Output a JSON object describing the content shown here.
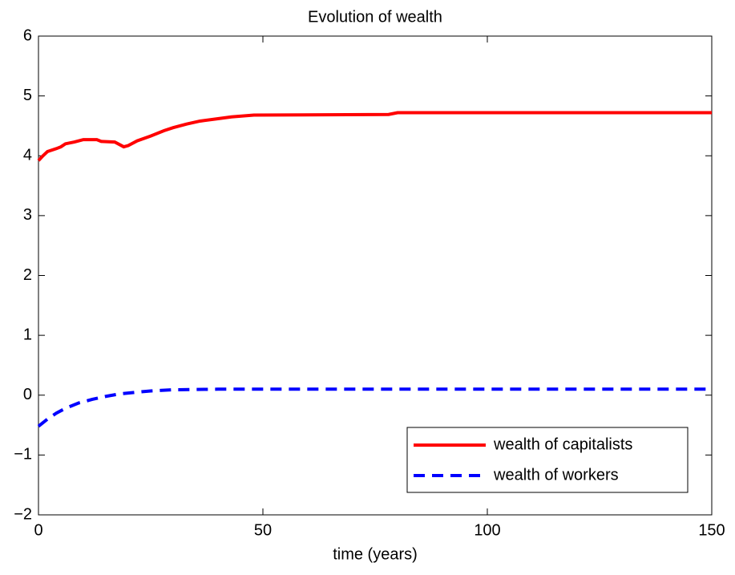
{
  "chart_data": {
    "type": "line",
    "title": "Evolution of wealth",
    "xlabel": "time (years)",
    "xlim": [
      0,
      150
    ],
    "xticks": [
      0,
      50,
      100,
      150
    ],
    "ylim": [
      -2,
      6
    ],
    "yticks": [
      {
        "value": -2,
        "label": "−2"
      },
      {
        "value": -1,
        "label": "−1"
      },
      0,
      1,
      2,
      3,
      4,
      5,
      6
    ],
    "legend": "lower right",
    "grid": false,
    "series": [
      {
        "name": "wealth of capitalists",
        "color": "#ff0000",
        "style": "solid",
        "x": [
          0,
          1,
          2,
          4,
          5,
          6,
          8,
          10,
          13,
          14,
          17,
          19,
          20,
          22,
          25,
          28,
          30,
          33,
          36,
          40,
          43,
          48,
          78,
          80,
          150
        ],
        "values": [
          3.92,
          4.0,
          4.07,
          4.12,
          4.15,
          4.2,
          4.23,
          4.27,
          4.27,
          4.24,
          4.23,
          4.15,
          4.17,
          4.25,
          4.33,
          4.42,
          4.47,
          4.53,
          4.58,
          4.62,
          4.65,
          4.68,
          4.69,
          4.72,
          4.72
        ]
      },
      {
        "name": "wealth of workers",
        "color": "#0000ff",
        "style": "dashed",
        "x": [
          0,
          2,
          4,
          6,
          9,
          12,
          15,
          18,
          22,
          25,
          30,
          40,
          150
        ],
        "values": [
          -0.52,
          -0.4,
          -0.3,
          -0.22,
          -0.13,
          -0.07,
          -0.02,
          0.02,
          0.05,
          0.07,
          0.09,
          0.1,
          0.1
        ]
      }
    ]
  }
}
